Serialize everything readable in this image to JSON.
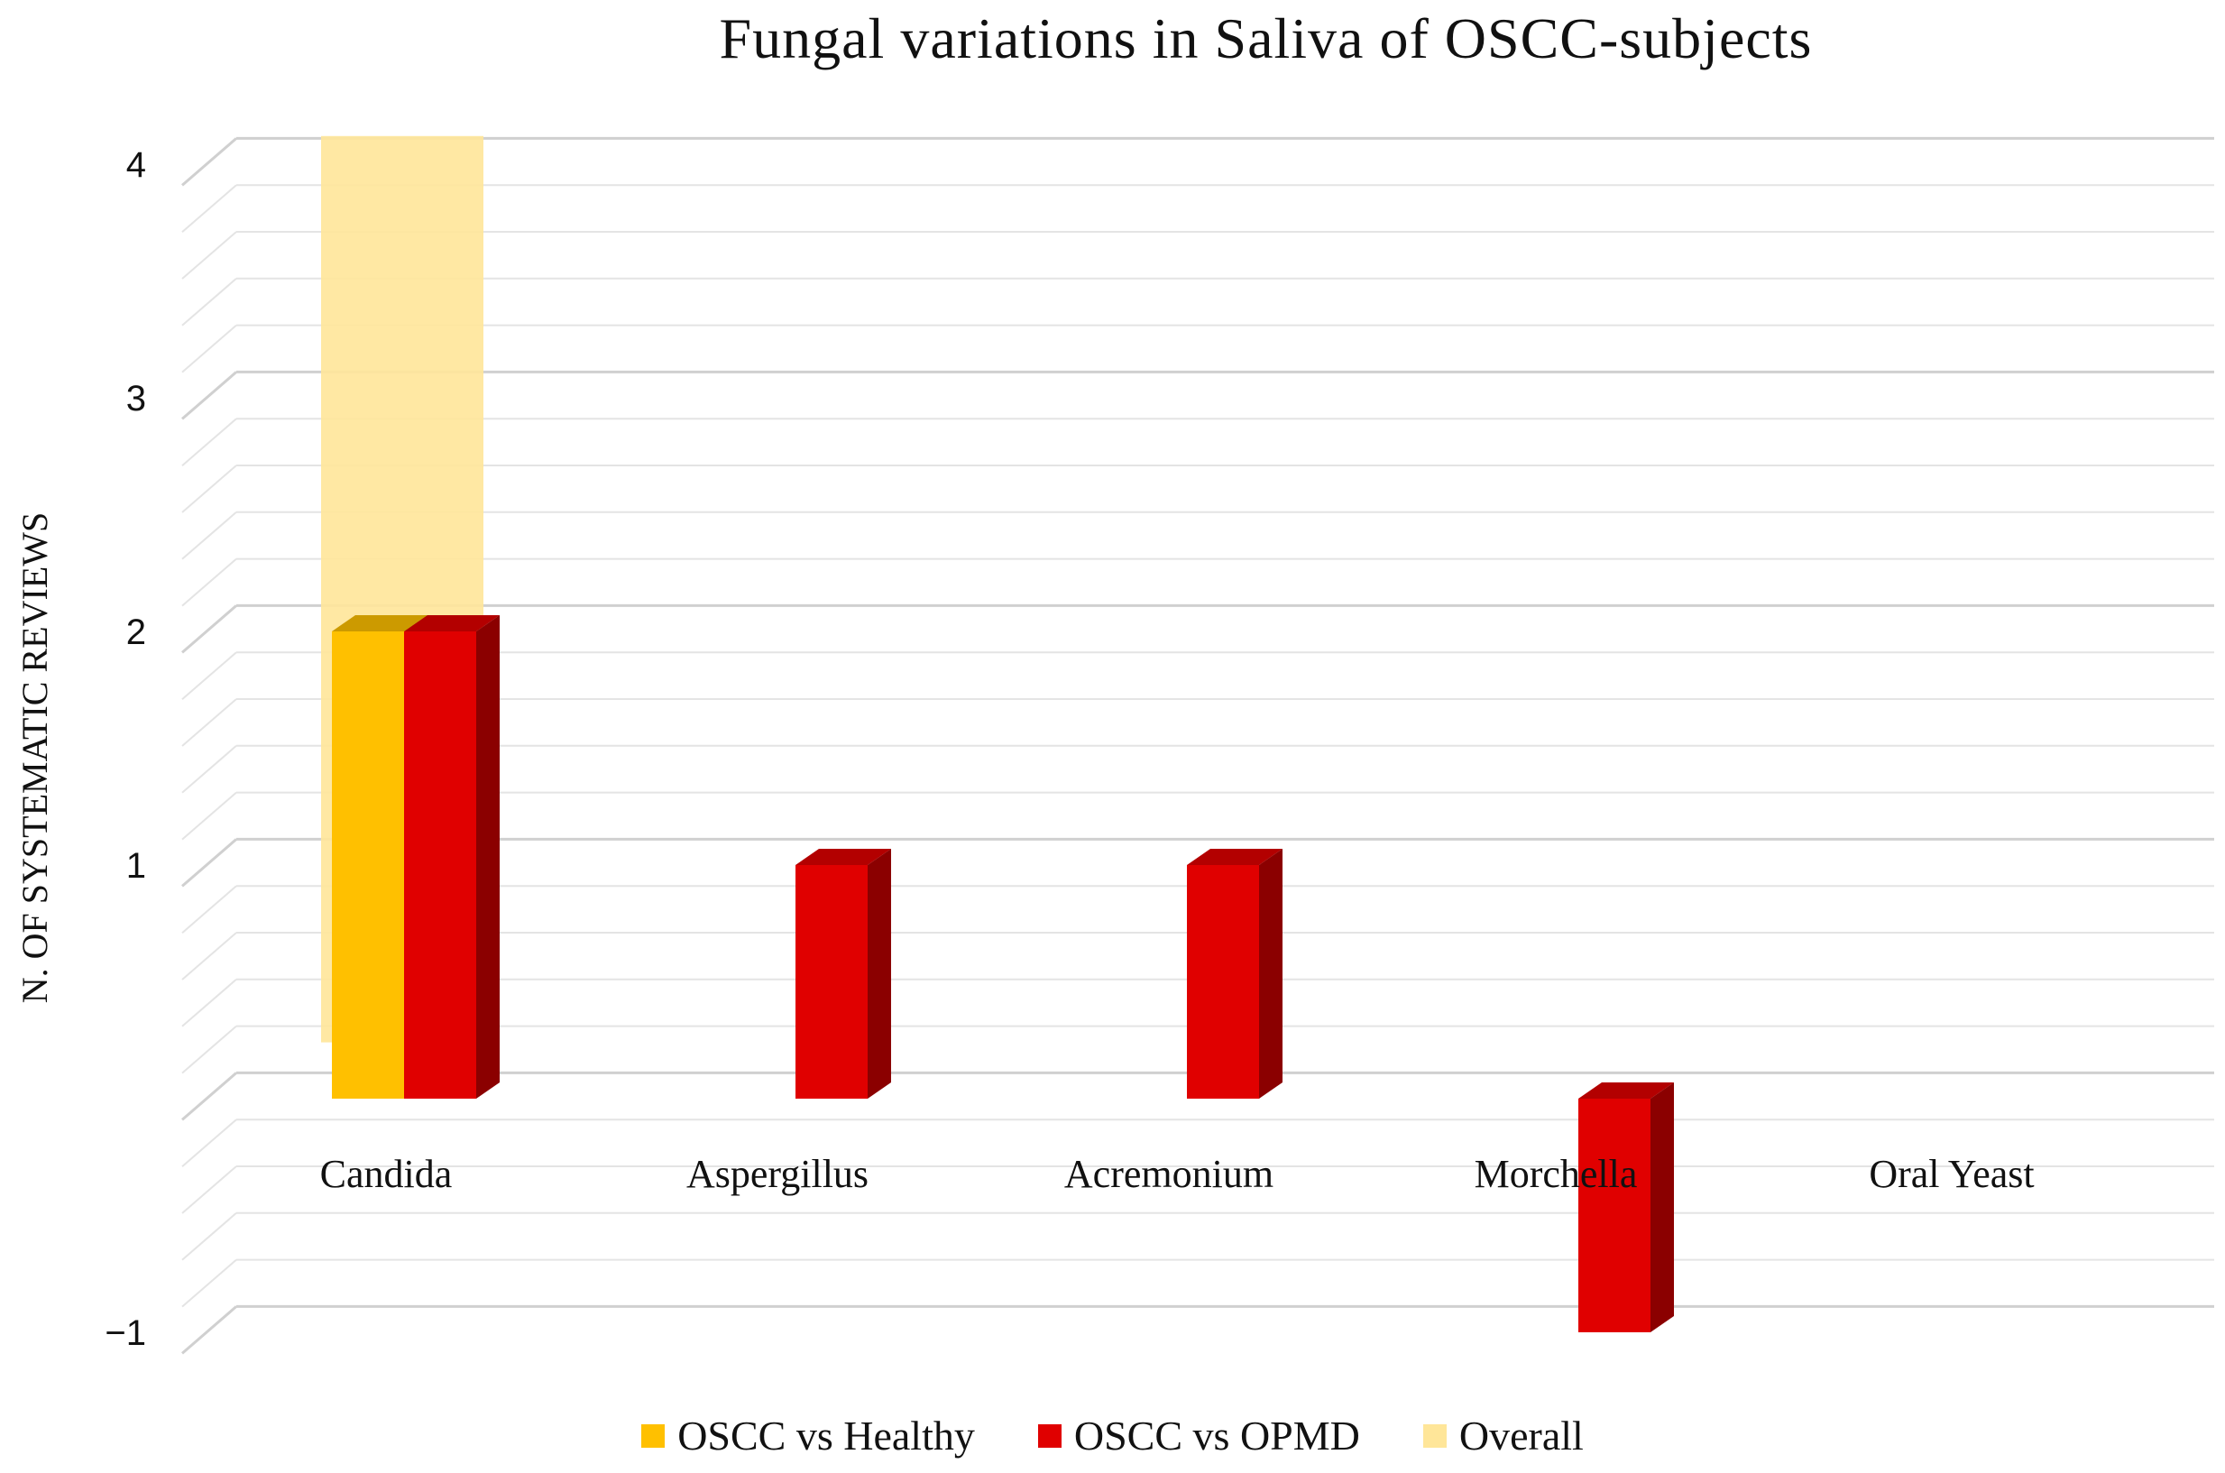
{
  "chart_data": {
    "type": "bar",
    "title": "Fungal variations in Saliva of OSCC-subjects",
    "ylabel": "N. OF SYSTEMATIC REVIEWS",
    "xlabel": "",
    "ylim": [
      -1,
      4
    ],
    "yticks": [
      4,
      3,
      2,
      1,
      -1
    ],
    "ytick_labels": [
      "4",
      "3",
      "2",
      "1",
      "−1"
    ],
    "categories": [
      "Candida",
      "Aspergillus",
      "Acremonium",
      "Morchella",
      "Oral Yeast"
    ],
    "series": [
      {
        "name": "OSCC vs Healthy",
        "color": "#FFC000",
        "values": [
          2,
          0,
          0,
          0,
          0
        ]
      },
      {
        "name": "OSCC vs OPMD",
        "color": "#E00000",
        "values": [
          2,
          1,
          1,
          -1,
          0
        ]
      },
      {
        "name": "Overall",
        "color": "#FFE699",
        "values": [
          4,
          0,
          0,
          0,
          0
        ]
      }
    ],
    "legend_position": "bottom"
  }
}
